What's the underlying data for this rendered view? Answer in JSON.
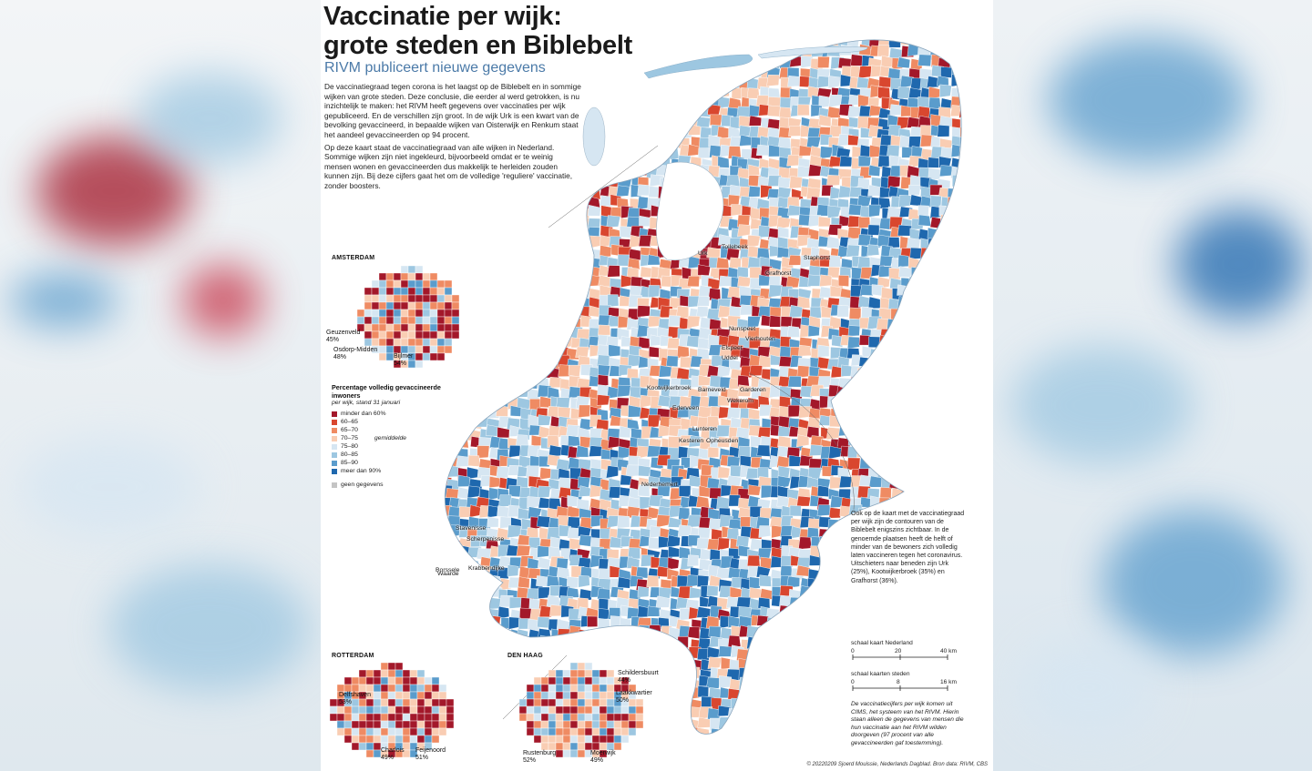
{
  "header": {
    "title_line1": "Vaccinatie per wijk:",
    "title_line2": "grote steden en Biblebelt",
    "subtitle": "RIVM publiceert nieuwe gegevens"
  },
  "intro": {
    "paragraph1": "De vaccinatiegraad tegen corona is het laagst op de Biblebelt en in sommige wijken van grote steden. Deze conclusie, die eerder al werd getrokken, is nu inzichtelijk te maken: het RIVM heeft gegevens over vaccinaties per wijk gepubliceerd. En de verschillen zijn groot. In de wijk Urk is een kwart van de bevolking gevaccineerd, in bepaalde wijken van Oisterwijk en Renkum staat het aandeel gevaccineerden op 94 procent.",
    "paragraph2": "Op deze kaart staat de vaccinatiegraad van alle wijken in Nederland. Sommige wijken zijn niet ingekleurd, bijvoorbeeld omdat er te weinig mensen wonen en gevaccineerden dus makkelijk te herleiden zouden kunnen zijn. Bij deze cijfers gaat het om de volledige 'reguliere' vaccinatie, zonder boosters."
  },
  "insets": {
    "amsterdam": {
      "label": "AMSTERDAM",
      "places": [
        {
          "name": "Geuzenveld",
          "pct": "45%"
        },
        {
          "name": "Osdorp-Midden",
          "pct": "48%"
        },
        {
          "name": "Bijlmer",
          "pct": "54%"
        }
      ]
    },
    "rotterdam": {
      "label": "ROTTERDAM",
      "places": [
        {
          "name": "Delfshaven",
          "pct": "53%"
        },
        {
          "name": "Charlois",
          "pct": "49%"
        },
        {
          "name": "Feijenoord",
          "pct": "51%"
        }
      ]
    },
    "den_haag": {
      "label": "DEN HAAG",
      "places": [
        {
          "name": "Schildersbuurt",
          "pct": "44%"
        },
        {
          "name": "Laakkwartier",
          "pct": "50%"
        },
        {
          "name": "Rustenburg",
          "pct": "52%"
        },
        {
          "name": "Moerwijk",
          "pct": "49%"
        }
      ]
    }
  },
  "legend": {
    "title": "Percentage volledig gevaccineerde inwoners",
    "subtitle": "per wijk, stand 31 januari",
    "average_label": "gemiddelde",
    "classes": [
      {
        "label": "minder dan 60%",
        "color": "#a3182a"
      },
      {
        "label": "60–65",
        "color": "#d9472f"
      },
      {
        "label": "65–70",
        "color": "#ef8b63"
      },
      {
        "label": "70–75",
        "color": "#f9cdb3"
      },
      {
        "label": "75–80",
        "color": "#d6e6f2"
      },
      {
        "label": "80–85",
        "color": "#9dc7e1"
      },
      {
        "label": "85–90",
        "color": "#5a9ccc"
      },
      {
        "label": "meer dan 90%",
        "color": "#1f68ae"
      }
    ],
    "no_data": {
      "label": "geen gegevens",
      "color": "#c4c4c4"
    }
  },
  "towns": [
    "Urk",
    "Tollebeek",
    "Staphorst",
    "Grafhorst",
    "Nunspeet",
    "Elspeet",
    "Vierhouten",
    "Kootwijkerbroek",
    "Uddel",
    "Garderen",
    "Wekerom",
    "Lunteren",
    "Ederveen",
    "Barneveld",
    "Kesteren",
    "Opheusden",
    "Nederhemert",
    "Stavenisse",
    "Scherpenisse",
    "Borssele",
    "Waarde",
    "Krabbendijke"
  ],
  "note": "Ook op de kaart met de vaccinatiegraad per wijk zijn de contouren van de Biblebelt enigszins zichtbaar. In de genoemde plaatsen heeft de helft of minder van de bewoners zich volledig laten vaccineren tegen het coronavirus. Uitschieters naar beneden zijn Urk (25%), Kootwijkerbroek (35%) en Grafhorst (36%).",
  "scales": {
    "nl": {
      "label": "schaal kaart Nederland",
      "ticks": [
        "0",
        "20",
        "40 km"
      ]
    },
    "cities": {
      "label": "schaal kaarten steden",
      "ticks": [
        "0",
        "8",
        "16 km"
      ]
    }
  },
  "source_note": "De vaccinatiecijfers per wijk komen uit CIMS, het systeem van het RIVM. Hierin staan alleen de gegevens van mensen die hun vaccinatie aan het RIVM wilden doorgeven (97 procent van alle gevaccineerden gaf toestemming).",
  "credit": "© 20220209 Sjoerd Mouissie, Nederlands Dagblad. Bron data: RIVM, CBS"
}
